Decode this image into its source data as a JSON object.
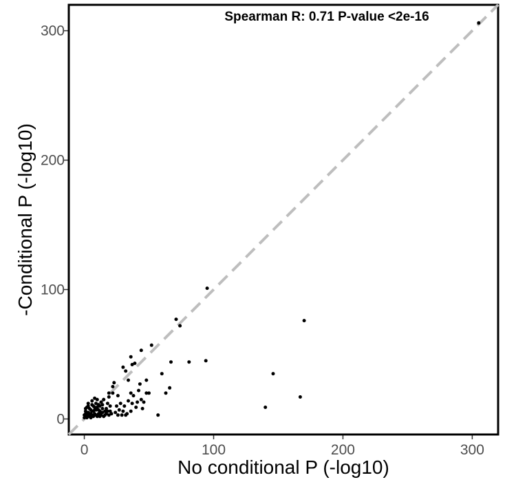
{
  "chart_data": {
    "type": "scatter",
    "title": "",
    "annotation": "Spearman R: 0.71 P-value <2e-16",
    "xlabel": "No conditional P (-log10)",
    "ylabel": "-Conditional P (-log10)",
    "xlim": [
      -12,
      320
    ],
    "ylim": [
      -12,
      320
    ],
    "xticks": [
      0,
      100,
      200,
      300
    ],
    "yticks": [
      0,
      100,
      200,
      300
    ],
    "x_tick_labels": [
      "0",
      "100",
      "200",
      "300"
    ],
    "y_tick_labels": [
      "0",
      "100",
      "200",
      "300"
    ],
    "grid": false,
    "reference_line": {
      "type": "identity",
      "style": "dashed",
      "color": "#bebebe"
    },
    "point_color": "#000000",
    "points": [
      [
        305,
        306
      ],
      [
        95,
        101
      ],
      [
        71,
        77
      ],
      [
        74,
        72
      ],
      [
        170,
        76
      ],
      [
        52,
        57
      ],
      [
        44,
        53
      ],
      [
        36,
        48
      ],
      [
        39,
        43
      ],
      [
        37,
        42
      ],
      [
        67,
        44
      ],
      [
        81,
        44
      ],
      [
        94,
        45
      ],
      [
        146,
        35
      ],
      [
        60,
        35
      ],
      [
        66,
        24
      ],
      [
        63,
        20
      ],
      [
        48,
        30
      ],
      [
        43,
        27
      ],
      [
        34,
        30
      ],
      [
        32,
        37
      ],
      [
        30,
        40
      ],
      [
        48,
        20
      ],
      [
        50,
        20
      ],
      [
        42,
        22
      ],
      [
        44,
        15
      ],
      [
        36,
        20
      ],
      [
        38,
        18
      ],
      [
        41,
        13
      ],
      [
        46,
        13
      ],
      [
        34,
        14
      ],
      [
        37,
        12
      ],
      [
        40,
        9
      ],
      [
        45,
        8
      ],
      [
        36,
        6
      ],
      [
        33,
        4
      ],
      [
        26,
        3
      ],
      [
        29,
        3
      ],
      [
        32,
        3
      ],
      [
        25,
        10
      ],
      [
        28,
        12
      ],
      [
        31,
        10
      ],
      [
        22,
        25
      ],
      [
        23,
        28
      ],
      [
        22,
        20
      ],
      [
        19,
        17
      ],
      [
        20,
        10
      ],
      [
        57,
        3
      ],
      [
        140,
        9
      ],
      [
        167,
        17
      ],
      [
        18,
        12
      ],
      [
        17,
        8
      ],
      [
        15,
        15
      ],
      [
        14,
        5
      ],
      [
        16,
        3
      ],
      [
        12,
        10
      ],
      [
        13,
        13
      ],
      [
        11,
        7
      ],
      [
        10,
        15
      ],
      [
        9,
        12
      ],
      [
        8,
        9
      ],
      [
        7,
        6
      ],
      [
        6,
        11
      ],
      [
        5,
        4
      ],
      [
        4,
        8
      ],
      [
        3,
        3
      ],
      [
        2,
        5
      ],
      [
        1,
        2
      ],
      [
        0,
        1
      ],
      [
        1,
        6
      ],
      [
        2,
        9
      ],
      [
        3,
        12
      ],
      [
        4,
        2
      ],
      [
        5,
        7
      ],
      [
        6,
        3
      ],
      [
        7,
        10
      ],
      [
        8,
        4
      ],
      [
        9,
        7
      ],
      [
        10,
        2
      ],
      [
        11,
        4
      ],
      [
        12,
        6
      ],
      [
        13,
        3
      ],
      [
        14,
        8
      ],
      [
        15,
        2
      ],
      [
        16,
        6
      ],
      [
        17,
        4
      ],
      [
        18,
        6
      ],
      [
        19,
        3
      ],
      [
        20,
        6
      ],
      [
        21,
        4
      ],
      [
        3,
        5
      ],
      [
        4,
        4
      ],
      [
        2,
        2
      ],
      [
        1,
        4
      ],
      [
        0,
        3
      ],
      [
        5,
        1
      ],
      [
        6,
        6
      ],
      [
        7,
        2
      ],
      [
        8,
        7
      ],
      [
        9,
        3
      ],
      [
        10,
        9
      ],
      [
        11,
        11
      ],
      [
        12,
        2
      ],
      [
        13,
        5
      ],
      [
        14,
        11
      ],
      [
        24,
        5
      ],
      [
        27,
        7
      ],
      [
        30,
        6
      ],
      [
        26,
        18
      ],
      [
        19,
        20
      ],
      [
        6,
        14
      ],
      [
        8,
        16
      ],
      [
        3,
        10
      ],
      [
        1,
        8
      ],
      [
        2,
        1
      ]
    ]
  }
}
